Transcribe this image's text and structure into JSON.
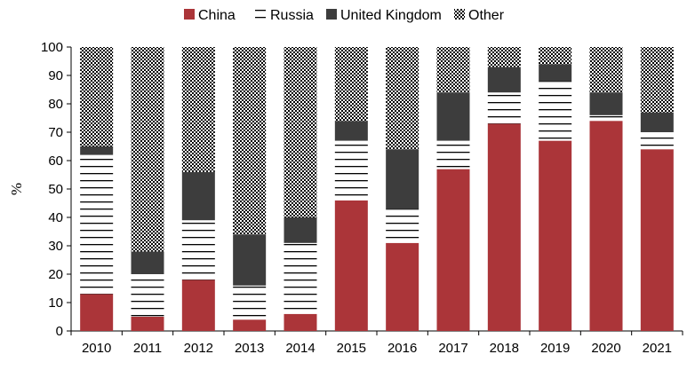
{
  "chart_data": {
    "type": "bar",
    "stacked": true,
    "title": "",
    "xlabel": "",
    "ylabel": "%",
    "ylim": [
      0,
      100
    ],
    "yticks": [
      0,
      10,
      20,
      30,
      40,
      50,
      60,
      70,
      80,
      90,
      100
    ],
    "legend_position": "top",
    "grid": false,
    "categories": [
      "2010",
      "2011",
      "2012",
      "2013",
      "2014",
      "2015",
      "2016",
      "2017",
      "2018",
      "2019",
      "2020",
      "2021"
    ],
    "series": [
      {
        "name": "China",
        "pattern": "solid",
        "color": "#ab3539",
        "values": [
          13,
          5,
          18,
          4,
          6,
          46,
          31,
          57,
          73,
          67,
          74,
          64
        ]
      },
      {
        "name": "Russia",
        "pattern": "horizontal-lines",
        "color": "#000000",
        "values": [
          49,
          15,
          21,
          12,
          25,
          21,
          12,
          10,
          11,
          21,
          2,
          6
        ]
      },
      {
        "name": "United Kingdom",
        "pattern": "solid",
        "color": "#3d3d3d",
        "values": [
          3,
          8,
          17,
          18,
          9,
          7,
          21,
          17,
          9,
          6,
          8,
          7
        ]
      },
      {
        "name": "Other",
        "pattern": "checker",
        "color": "#000000",
        "values": [
          35,
          72,
          44,
          66,
          60,
          26,
          36,
          16,
          7,
          6,
          16,
          23
        ]
      }
    ]
  }
}
